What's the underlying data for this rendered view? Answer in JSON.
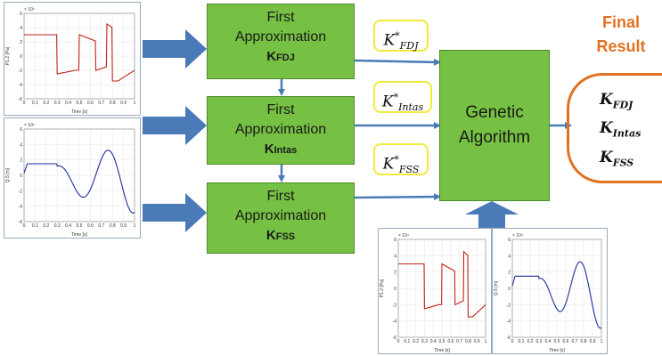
{
  "approximations": [
    {
      "title_1": "First",
      "title_2": "Approximation",
      "key": "K",
      "key_sub": "FDJ"
    },
    {
      "title_1": "First",
      "title_2": "Approximation",
      "key": "K",
      "key_sub": "Intas"
    },
    {
      "title_1": "First",
      "title_2": "Approximation",
      "key": "K",
      "key_sub": "FSS"
    }
  ],
  "genetic_algorithm": {
    "line_1": "Genetic",
    "line_2": "Algorithm"
  },
  "k_star_labels": [
    {
      "symbol": "K",
      "sup": "*",
      "sub": "FDJ"
    },
    {
      "symbol": "K",
      "sup": "*",
      "sub": "Intas"
    },
    {
      "symbol": "K",
      "sup": "*",
      "sub": "FSS"
    }
  ],
  "final_result": {
    "title_1": "Final",
    "title_2": "Result",
    "items": [
      {
        "symbol": "K",
        "sub": "FDJ"
      },
      {
        "symbol": "K",
        "sub": "Intas"
      },
      {
        "symbol": "K",
        "sub": "FSS"
      }
    ]
  },
  "plots": {
    "red_ylabel": "P1.2 [Pa]",
    "blue_ylabel": "Q.5 [m]",
    "xlabel": "Time [s]",
    "exponent": "× 10⁴",
    "x_ticks": [
      "0",
      "0.1",
      "0.2",
      "0.3",
      "0.4",
      "0.5",
      "0.6",
      "0.7",
      "0.8",
      "0.9",
      "1"
    ],
    "y_ticks": [
      "6",
      "4",
      "2",
      "0",
      "-2",
      "-4",
      "-6"
    ]
  },
  "colors": {
    "box_fill": "#76c043",
    "arrow": "#4a7ab8",
    "k_border": "#f1ea3c",
    "final": "#e27222",
    "red_signal": "#c0221a",
    "blue_signal": "#1e2d9c"
  }
}
